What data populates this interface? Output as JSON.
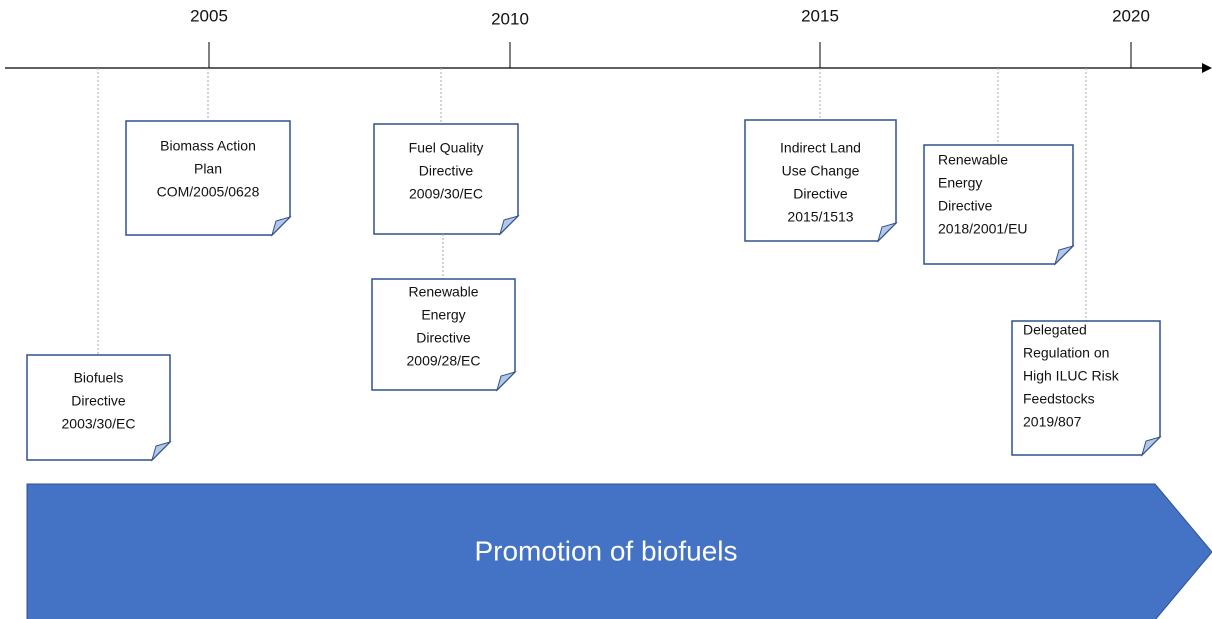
{
  "axis": {
    "ticks": [
      "2005",
      "2010",
      "2015",
      "2020"
    ]
  },
  "events": [
    {
      "lines": [
        "Biofuels",
        "Directive",
        "2003/30/EC"
      ]
    },
    {
      "lines": [
        "Biomass Action",
        "Plan",
        "COM/2005/0628"
      ]
    },
    {
      "lines": [
        "Fuel Quality",
        "Directive",
        "2009/30/EC"
      ]
    },
    {
      "lines": [
        "Renewable",
        "Energy",
        "Directive",
        "2009/28/EC"
      ]
    },
    {
      "lines": [
        "Indirect Land",
        "Use Change",
        "Directive",
        "2015/1513"
      ]
    },
    {
      "lines": [
        "Renewable",
        "Energy",
        "Directive",
        "2018/2001/EU"
      ]
    },
    {
      "lines": [
        "Delegated",
        "Regulation on",
        "High ILUC Risk",
        "Feedstocks",
        "2019/807"
      ]
    }
  ],
  "banner": "Promotion of biofuels"
}
